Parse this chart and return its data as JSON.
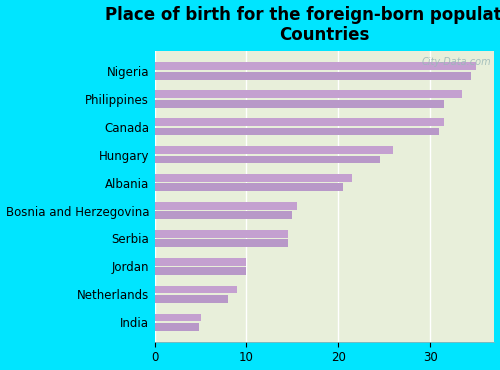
{
  "title": "Place of birth for the foreign-born population -\nCountries",
  "categories": [
    "Nigeria",
    "Philippines",
    "Canada",
    "Hungary",
    "Albania",
    "Bosnia and Herzegovina",
    "Serbia",
    "Jordan",
    "Netherlands",
    "India"
  ],
  "values1": [
    35.0,
    33.5,
    31.5,
    26.0,
    21.5,
    15.5,
    14.5,
    10.0,
    9.0,
    5.0
  ],
  "values2": [
    34.5,
    31.5,
    31.0,
    24.5,
    20.5,
    15.0,
    14.5,
    10.0,
    8.0,
    4.8
  ],
  "bar_color1": "#c4a0d0",
  "bar_color2": "#b898c8",
  "bg_color": "#00e5ff",
  "plot_bg_color": "#e8efda",
  "watermark": "City-Data.com",
  "xlim": [
    0,
    37
  ],
  "xticks": [
    0,
    10,
    20,
    30
  ],
  "title_fontsize": 12,
  "label_fontsize": 8.5
}
